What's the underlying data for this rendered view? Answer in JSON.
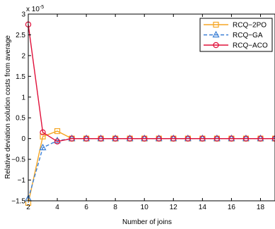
{
  "chart_data": {
    "type": "line",
    "title": "",
    "xlabel": "Number of joins",
    "ylabel": "Relative deviation solution costs from average",
    "y_exponent_label": "x 10",
    "y_exponent_power": "-5",
    "xlim": [
      2,
      19
    ],
    "ylim": [
      -1.5,
      3
    ],
    "x_ticks": [
      2,
      4,
      6,
      8,
      10,
      12,
      14,
      16,
      18
    ],
    "y_ticks": [
      -1.5,
      -1,
      -0.5,
      0,
      0.5,
      1,
      1.5,
      2,
      2.5,
      3
    ],
    "y_tick_labels": [
      "−1.5",
      "−1",
      "−0.5",
      "0",
      "0.5",
      "1",
      "1.5",
      "2",
      "2.5",
      "3"
    ],
    "grid": false,
    "legend_position": "top-right",
    "x": [
      2,
      3,
      4,
      5,
      6,
      7,
      8,
      9,
      10,
      11,
      12,
      13,
      14,
      15,
      16,
      17,
      18,
      19
    ],
    "series": [
      {
        "name": "RCQ−2PO",
        "color": "#f5a623",
        "dash": "solid",
        "marker": "square",
        "values": [
          -1.55,
          0.05,
          0.18,
          0.0,
          0.0,
          0.0,
          0.0,
          0.0,
          0.0,
          0.0,
          0.0,
          0.0,
          0.0,
          0.0,
          0.0,
          0.0,
          0.0,
          0.0
        ]
      },
      {
        "name": "RCQ−GA",
        "color": "#3a7fd5",
        "dash": "dashed",
        "marker": "triangle",
        "values": [
          -1.45,
          -0.22,
          -0.05,
          0.0,
          0.0,
          0.0,
          0.0,
          0.0,
          0.0,
          0.0,
          0.0,
          0.0,
          0.0,
          0.0,
          0.0,
          0.0,
          0.0,
          0.0
        ]
      },
      {
        "name": "RCQ−ACO",
        "color": "#e0103a",
        "dash": "solid",
        "marker": "circle",
        "values": [
          2.75,
          0.15,
          -0.07,
          0.0,
          0.0,
          0.0,
          0.0,
          0.0,
          0.0,
          0.0,
          0.0,
          0.0,
          0.0,
          0.0,
          0.0,
          0.0,
          0.0,
          0.0
        ]
      }
    ]
  }
}
